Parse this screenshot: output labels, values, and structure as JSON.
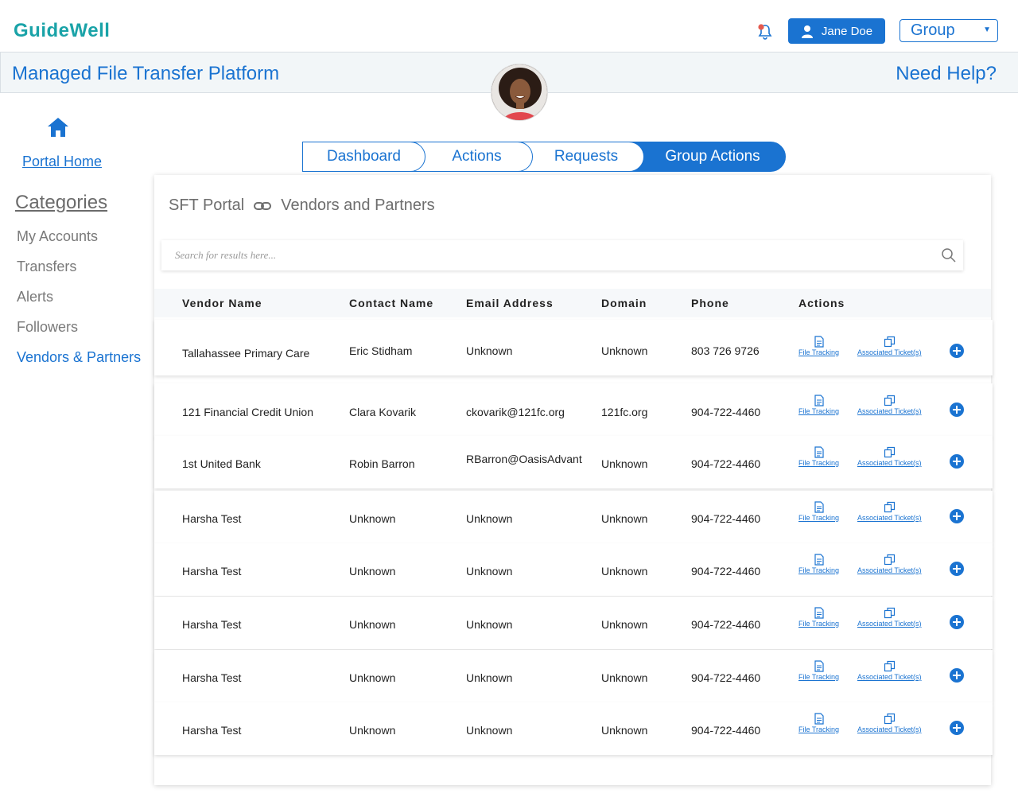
{
  "header": {
    "logo_text": "GuideWell",
    "user_name": "Jane Doe",
    "group_value": "Group"
  },
  "titlebar": {
    "title": "Managed File Transfer Platform",
    "help": "Need Help?"
  },
  "sidebar": {
    "portal_home": "Portal Home",
    "categories_heading": "Categories",
    "items": [
      {
        "label": "My Accounts"
      },
      {
        "label": "Transfers"
      },
      {
        "label": "Alerts"
      },
      {
        "label": "Followers"
      },
      {
        "label": "Vendors & Partners"
      }
    ]
  },
  "tabs": [
    {
      "label": "Dashboard"
    },
    {
      "label": "Actions"
    },
    {
      "label": "Requests"
    },
    {
      "label": "Group Actions"
    }
  ],
  "breadcrumb": {
    "root": "SFT Portal",
    "current": "Vendors and Partners"
  },
  "search": {
    "placeholder": "Search for results here..."
  },
  "table": {
    "headers": {
      "vendor": "Vendor Name",
      "contact": "Contact Name",
      "email": "Email Address",
      "domain": "Domain",
      "phone": "Phone",
      "actions": "Actions"
    },
    "action_labels": {
      "file_tracking": "File Tracking",
      "tickets": "Associated Ticket(s)"
    },
    "rows": [
      {
        "vendor": "Tallahassee Primary Care",
        "contact": "Eric Stidham",
        "email": "Unknown",
        "domain": "Unknown",
        "phone": "803 726 9726"
      },
      {
        "vendor": "121 Financial Credit Union",
        "contact": "Clara Kovarik",
        "email": "ckovarik@121fc.org",
        "domain": "121fc.org",
        "phone": "904-722-4460"
      },
      {
        "vendor": "1st United Bank",
        "contact": "Robin Barron",
        "email": "RBarron@OasisAdvant",
        "domain": "Unknown",
        "phone": "904-722-4460"
      },
      {
        "vendor": "Harsha Test",
        "contact": "Unknown",
        "email": "Unknown",
        "domain": "Unknown",
        "phone": "904-722-4460"
      },
      {
        "vendor": "Harsha Test",
        "contact": "Unknown",
        "email": "Unknown",
        "domain": "Unknown",
        "phone": "904-722-4460"
      },
      {
        "vendor": "Harsha Test",
        "contact": "Unknown",
        "email": "Unknown",
        "domain": "Unknown",
        "phone": "904-722-4460"
      },
      {
        "vendor": "Harsha Test",
        "contact": "Unknown",
        "email": "Unknown",
        "domain": "Unknown",
        "phone": "904-722-4460"
      },
      {
        "vendor": "Harsha Test",
        "contact": "Unknown",
        "email": "Unknown",
        "domain": "Unknown",
        "phone": "904-722-4460"
      }
    ]
  },
  "colors": {
    "accent": "#1a73d1",
    "brand_teal": "#1aa3a8",
    "notification": "#e45a4f"
  }
}
